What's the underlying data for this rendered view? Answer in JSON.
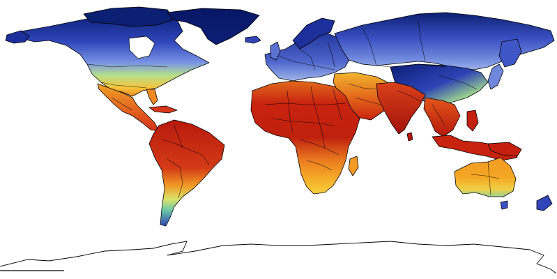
{
  "map": {
    "projection": "equirectangular",
    "background_color": "#ffffff",
    "color_ramp": [
      "#0a1a6b",
      "#2b3fb0",
      "#6a82d8",
      "#a7d38a",
      "#f7e04a",
      "#f5a623",
      "#e8551c",
      "#c8230f",
      "#9c0d0a"
    ],
    "regions": [
      {
        "name": "north-america",
        "colors": [
          "#0b1f73",
          "#3650c8",
          "#7fa0e8",
          "#b9e38a",
          "#f9c83b"
        ]
      },
      {
        "name": "greenland",
        "colors": [
          "#0a1a6b"
        ]
      },
      {
        "name": "central-america",
        "colors": [
          "#f07a1f",
          "#d9361a"
        ]
      },
      {
        "name": "south-america",
        "colors": [
          "#c8230f",
          "#e8551c",
          "#f5a623",
          "#a7d38a",
          "#4059c4"
        ]
      },
      {
        "name": "europe",
        "colors": [
          "#2b3fb0",
          "#5a6fd0",
          "#8ba2e6"
        ]
      },
      {
        "name": "russia-north-asia",
        "colors": [
          "#0b1f73",
          "#3a4fc0",
          "#7b92e0"
        ]
      },
      {
        "name": "africa",
        "colors": [
          "#c8230f",
          "#e8551c",
          "#f5a623",
          "#f7e04a"
        ]
      },
      {
        "name": "middle-east",
        "colors": [
          "#e8551c",
          "#c8230f",
          "#f5a623"
        ]
      },
      {
        "name": "india-southeast-asia",
        "colors": [
          "#c8230f",
          "#a3120c",
          "#e8551c"
        ]
      },
      {
        "name": "china-tibet",
        "colors": [
          "#0b1f73",
          "#2b3fb0",
          "#a7d38a",
          "#f7e04a"
        ]
      },
      {
        "name": "australia",
        "colors": [
          "#f5a623",
          "#e8551c",
          "#f7e04a",
          "#a7d38a"
        ]
      },
      {
        "name": "antarctica",
        "colors": [
          "#ffffff"
        ]
      }
    ]
  }
}
